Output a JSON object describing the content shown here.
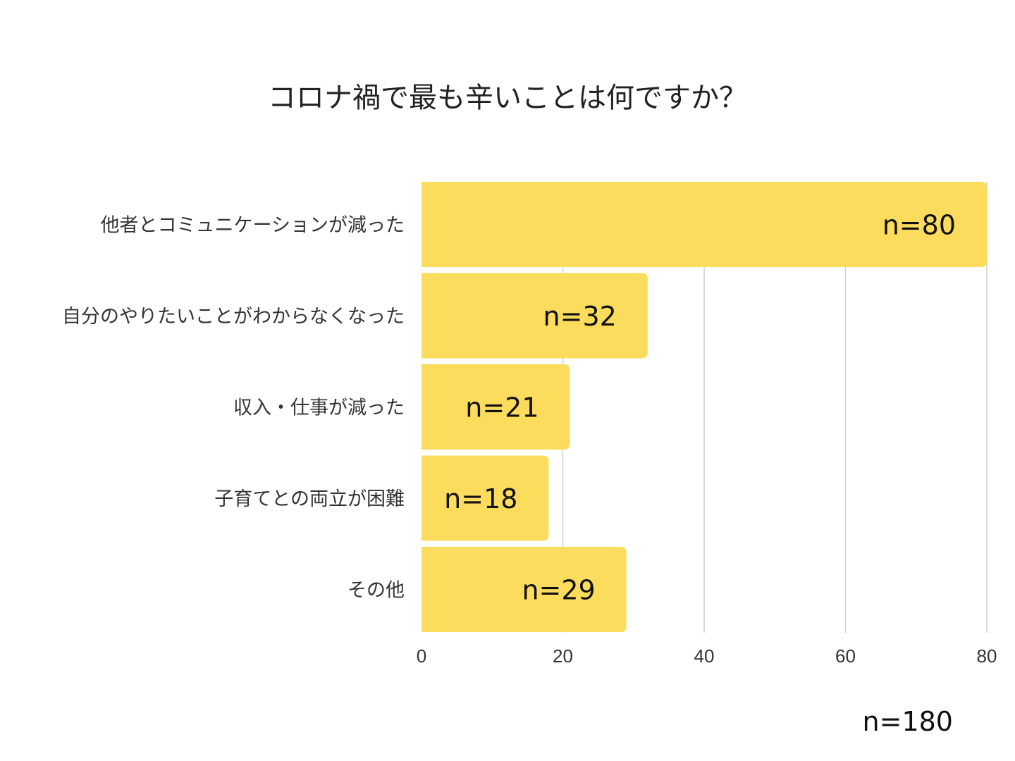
{
  "chart_data": {
    "type": "bar",
    "orientation": "horizontal",
    "title": "コロナ禍で最も辛いことは何ですか？",
    "categories": [
      "他者とコミュニケーションが減った",
      "自分のやりたいことがわからなくなった",
      "収入・仕事が減った",
      "子育てとの両立が困難",
      "その他"
    ],
    "values": [
      80,
      32,
      21,
      18,
      29
    ],
    "data_labels": [
      "n=80",
      "n=32",
      "n=21",
      "n=18",
      "n=29"
    ],
    "x_ticks": [
      "0",
      "20",
      "40",
      "60",
      "80"
    ],
    "xlim": [
      0,
      80
    ],
    "grid": "vertical",
    "total_label": "n=180",
    "colors": {
      "bar": "#fcdc5c",
      "grid": "#cfcfcf"
    }
  }
}
